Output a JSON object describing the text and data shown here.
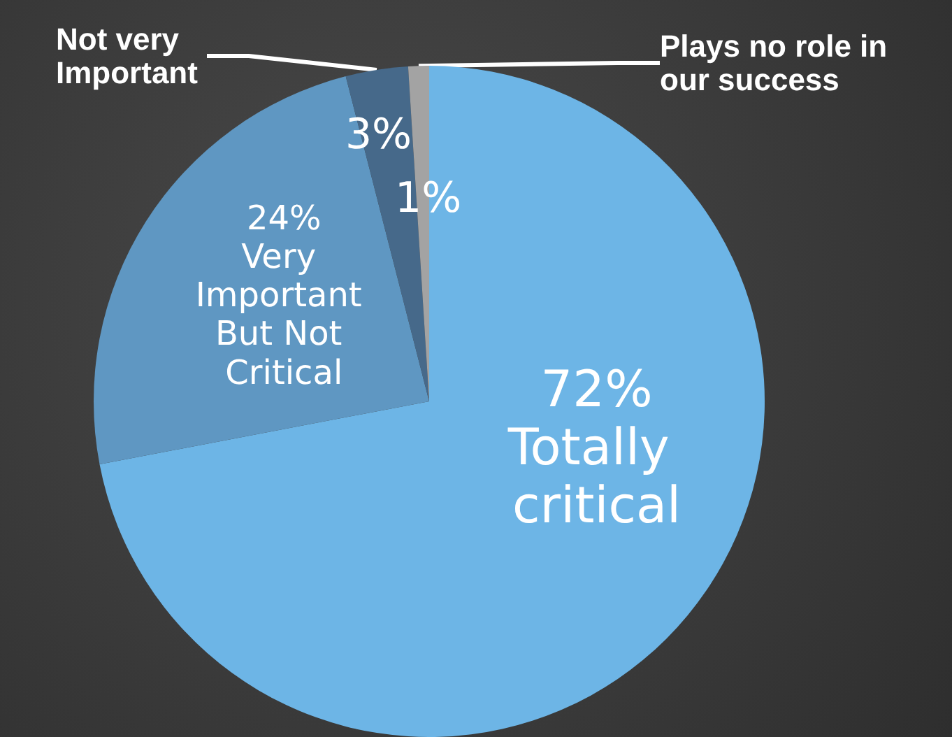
{
  "chart_data": {
    "type": "pie",
    "categories": [
      "Totally critical",
      "Very Important But Not Critical",
      "Not very Important",
      "Plays no role in our success"
    ],
    "values": [
      72,
      24,
      3,
      1
    ],
    "colors": [
      "#6db5e6",
      "#5f97c2",
      "#46698a",
      "#a3a3a3"
    ],
    "value_labels": [
      "72%",
      "24%",
      "3%",
      "1%"
    ]
  }
}
